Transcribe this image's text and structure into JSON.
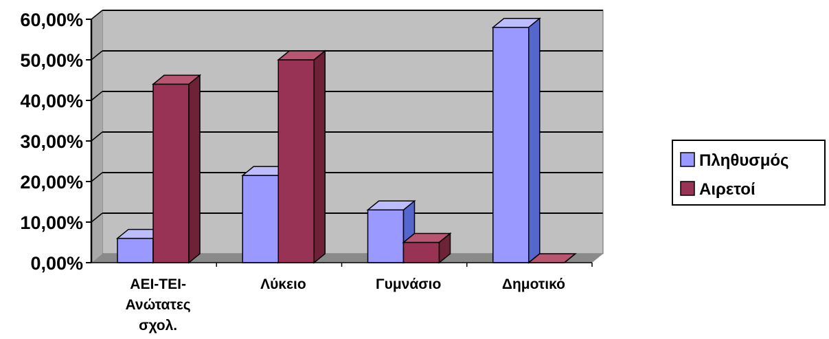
{
  "chart_data": {
    "type": "bar",
    "categories": [
      [
        "ΑΕΙ-ΤΕΙ-",
        "Ανώτατες",
        "σχολ."
      ],
      [
        "Λύκειο"
      ],
      [
        "Γυμνάσιο"
      ],
      [
        "Δημοτικό"
      ]
    ],
    "series": [
      {
        "name": "Πληθυσμός",
        "values": [
          6.0,
          21.5,
          13.0,
          58.0
        ],
        "color": "#9999ff",
        "top_color": "#bcbcff",
        "side_color": "#5566cc"
      },
      {
        "name": "Αιρετοί",
        "values": [
          44.0,
          50.0,
          5.0,
          0.0
        ],
        "color": "#993355",
        "top_color": "#b85570",
        "side_color": "#6e2238"
      }
    ],
    "y_ticks": [
      "0,00%",
      "10,00%",
      "20,00%",
      "30,00%",
      "40,00%",
      "50,00%",
      "60,00%"
    ],
    "ylim": [
      0,
      60
    ],
    "grid": true,
    "legend": "right",
    "wall_color": "#c0c0c0",
    "floor_color": "#8a8a8a"
  }
}
